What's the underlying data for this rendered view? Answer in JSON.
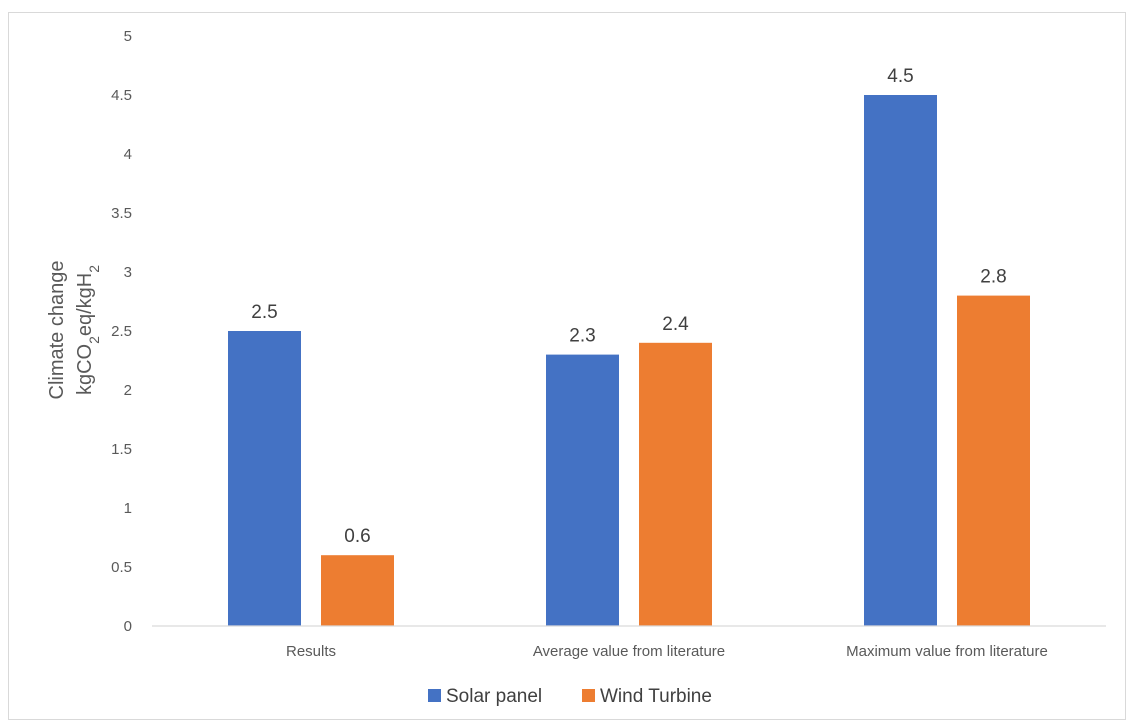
{
  "chart_data": {
    "type": "bar",
    "categories": [
      "Results",
      "Average value from literature",
      "Maximum value from literature"
    ],
    "series": [
      {
        "name": "Solar panel",
        "values": [
          2.5,
          2.3,
          4.5
        ],
        "color": "#4472C4"
      },
      {
        "name": "Wind Turbine",
        "values": [
          0.6,
          2.4,
          2.8
        ],
        "color": "#ED7D31"
      }
    ],
    "ylabel_line1": "Climate change",
    "ylabel_line2": {
      "p1": "kgCO",
      "s1": "2",
      "p2": "eq/kgH",
      "s2": "2"
    },
    "ylim": [
      0,
      5
    ],
    "yticks": [
      "0",
      "0.5",
      "1",
      "1.5",
      "2",
      "2.5",
      "3",
      "3.5",
      "4",
      "4.5",
      "5"
    ],
    "data_labels": [
      [
        "2.5",
        "2.3",
        "4.5"
      ],
      [
        "0.6",
        "2.4",
        "2.8"
      ]
    ],
    "grid": false,
    "legend_position": "bottom"
  }
}
